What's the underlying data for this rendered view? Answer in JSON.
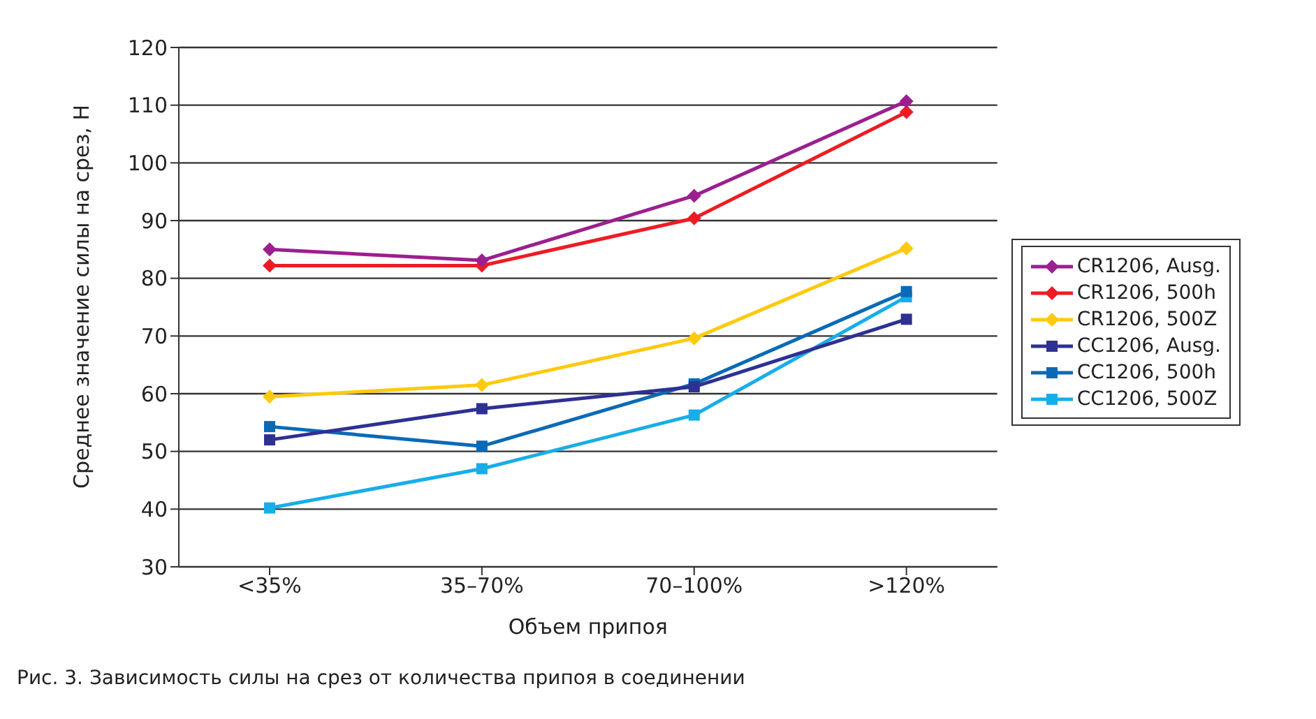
{
  "chart_data": {
    "type": "line",
    "xlabel": "Объем припоя",
    "ylabel": "Среднее значение силы на срез, Н",
    "categories": [
      "<35%",
      "35–70%",
      "70–100%",
      ">120%"
    ],
    "series": [
      {
        "name": "CR1206, Ausg.",
        "color": "#9b1f8f",
        "marker": "diamond",
        "values": [
          85,
          83.1,
          94.3,
          110.7
        ]
      },
      {
        "name": "CR1206, 500h",
        "color": "#ed1c24",
        "marker": "diamond",
        "values": [
          82.2,
          82.2,
          90.4,
          108.8
        ]
      },
      {
        "name": "CR1206, 500Z",
        "color": "#ffc90e",
        "marker": "diamond",
        "values": [
          59.5,
          61.5,
          69.6,
          85.2
        ]
      },
      {
        "name": "CC1206, Ausg.",
        "color": "#2e3192",
        "marker": "square",
        "values": [
          52,
          57.4,
          61.2,
          72.9
        ]
      },
      {
        "name": "CC1206, 500h",
        "color": "#0a6ab6",
        "marker": "square",
        "values": [
          54.3,
          50.9,
          61.7,
          77.7
        ]
      },
      {
        "name": "CC1206, 500Z",
        "color": "#17aee8",
        "marker": "square",
        "values": [
          40.2,
          47,
          56.3,
          76.8
        ]
      }
    ],
    "ylim": [
      30,
      120
    ],
    "yticks": [
      30,
      40,
      50,
      60,
      70,
      80,
      90,
      100,
      110,
      120
    ],
    "grid": "y",
    "legend": "right",
    "annotations": [
      "Рис. 3. Зависимость силы на срез от количества припоя в соединении"
    ]
  }
}
